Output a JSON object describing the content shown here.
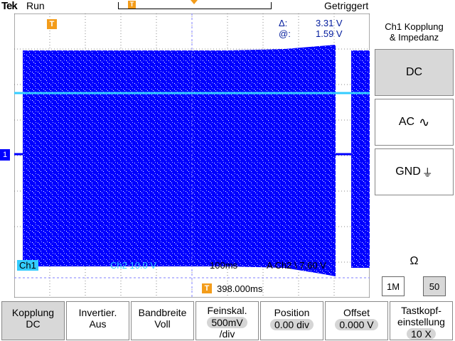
{
  "top": {
    "brand": "Tek",
    "run_state": "Run",
    "trigger_state": "Getriggert",
    "timeline_marker": "T"
  },
  "scope": {
    "ground_marker": "1",
    "trigger_marker": "T",
    "cursor_delta_label": "Δ:",
    "cursor_delta_value": "3.31 V",
    "cursor_at_label": "@:",
    "cursor_at_value": "1.59 V",
    "status_left": "Ch1",
    "status_mid": "100ms",
    "status_trig": "A  Ch2  \\  7.60 V",
    "ch2_scale": "Ch2  10.0 V",
    "trigger_pos": "398.000ms",
    "colors": {
      "ch1": "#0000ff",
      "ch2": "#33ccff",
      "accent": "#f39c1a",
      "text": "#001a9c"
    }
  },
  "side_menu": {
    "title_line1": "Ch1 Kopplung",
    "title_line2": "& Impedanz",
    "dc": "DC",
    "ac": "AC",
    "gnd": "GND",
    "ohm_label": "Ω",
    "imp_1m": "1M",
    "imp_50": "50"
  },
  "bottom_menu": [
    {
      "line1": "Kopplung",
      "line2": "DC"
    },
    {
      "line1": "Invertier.",
      "line2": "Aus"
    },
    {
      "line1": "Bandbreite",
      "line2": "Voll"
    },
    {
      "line1": "Feinskal.",
      "line2": "500mV",
      "line3": "/div"
    },
    {
      "line1": "Position",
      "line2": "0.00 div"
    },
    {
      "line1": "Offset",
      "line2": "0.000 V"
    },
    {
      "line1": "Tastkopf-",
      "line2": "einstellung",
      "line3": "10 X"
    }
  ]
}
